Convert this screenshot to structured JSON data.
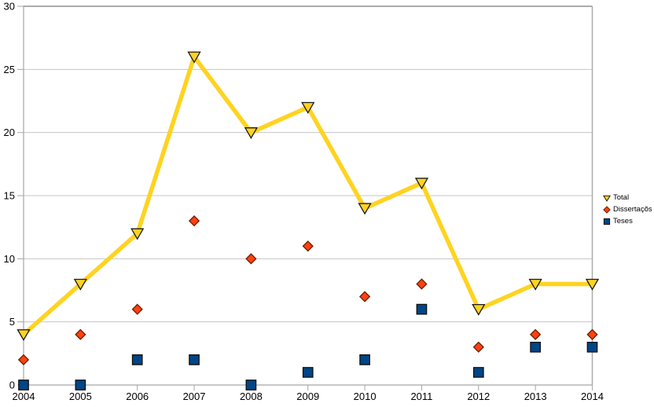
{
  "chart_data": {
    "type": "line",
    "title": "",
    "xlabel": "",
    "ylabel": "",
    "categories": [
      "2004",
      "2005",
      "2006",
      "2007",
      "2008",
      "2009",
      "2010",
      "2011",
      "2012",
      "2013",
      "2014"
    ],
    "series": [
      {
        "name": "Total",
        "values": [
          4,
          8,
          12,
          26,
          20,
          22,
          14,
          16,
          6,
          8,
          8
        ],
        "color": "#FFD320",
        "marker": "triangle-down",
        "marker_stroke": "#1A1A1A",
        "line": true
      },
      {
        "name": "Dissertaçõs",
        "values": [
          2,
          4,
          6,
          13,
          10,
          11,
          7,
          8,
          3,
          4,
          4
        ],
        "color": "#FF420E",
        "marker": "diamond",
        "marker_stroke": "#6E1C00",
        "line": false
      },
      {
        "name": "Teses",
        "values": [
          0,
          0,
          2,
          2,
          0,
          1,
          2,
          6,
          1,
          3,
          3
        ],
        "color": "#004586",
        "marker": "square",
        "marker_stroke": "#101010",
        "line": false
      }
    ],
    "ylim": [
      0,
      30
    ],
    "yticks": [
      0,
      5,
      10,
      15,
      20,
      25,
      30
    ],
    "grid": "horizontal",
    "legend_position": "right"
  },
  "colors": {
    "background": "#FFFFFF",
    "gridline": "#C5C5C5",
    "frame": "#ABABAB",
    "axis": "#A6A6A6",
    "axis_text": "#000000"
  }
}
